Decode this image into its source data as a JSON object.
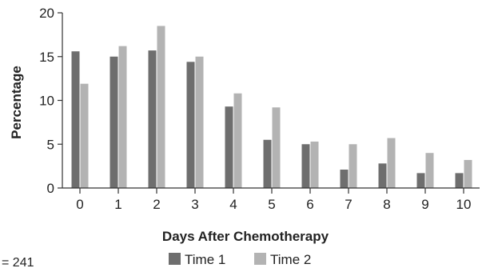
{
  "chart_data": {
    "type": "bar",
    "categories": [
      "0",
      "1",
      "2",
      "3",
      "4",
      "5",
      "6",
      "7",
      "8",
      "9",
      "10"
    ],
    "series": [
      {
        "name": "Time 1",
        "color": "#6e6e6e",
        "values": [
          15.6,
          15.0,
          15.7,
          14.4,
          9.3,
          5.5,
          5.0,
          2.1,
          2.8,
          1.7,
          1.7
        ]
      },
      {
        "name": "Time 2",
        "color": "#b3b3b3",
        "values": [
          11.9,
          16.2,
          18.5,
          15.0,
          10.8,
          9.2,
          5.3,
          5.0,
          5.7,
          4.0,
          3.2
        ]
      }
    ],
    "xlabel": "Days After Chemotherapy",
    "ylabel": "Percentage",
    "ylim": [
      0,
      20
    ],
    "yticks": [
      "0",
      "5",
      "10",
      "15",
      "20"
    ],
    "grid": false,
    "legend_position": "bottom-center",
    "note": "= 241"
  }
}
